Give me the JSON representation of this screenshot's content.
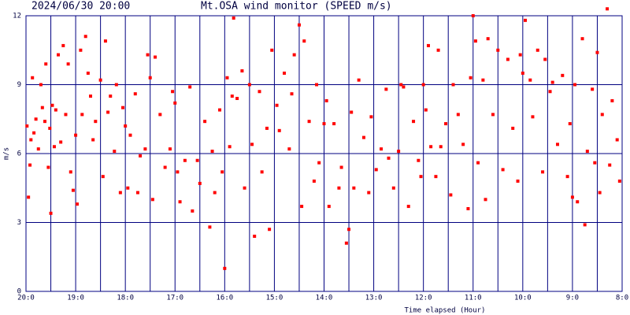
{
  "chart_data": {
    "type": "scatter",
    "title": "Mt.OSA wind monitor (SPEED m/s)",
    "subtitle": "2024/06/30 20:00",
    "xlabel": "Time elapsed (Hour)",
    "ylabel": "m/s",
    "color": "#ff0000",
    "grid": true,
    "xlim": [
      0,
      12
    ],
    "ylim": [
      0,
      12
    ],
    "yticks": [
      0,
      3,
      6,
      9,
      12
    ],
    "xticks": [
      {
        "value": 0,
        "label": "20:0"
      },
      {
        "value": 1,
        "label": "19:0"
      },
      {
        "value": 2,
        "label": "18:0"
      },
      {
        "value": 3,
        "label": "17:0"
      },
      {
        "value": 4,
        "label": "16:0"
      },
      {
        "value": 5,
        "label": "15:0"
      },
      {
        "value": 6,
        "label": "14:0"
      },
      {
        "value": 7,
        "label": "13:0"
      },
      {
        "value": 8,
        "label": "12:0"
      },
      {
        "value": 9,
        "label": "11:0"
      },
      {
        "value": 10,
        "label": "10:0"
      },
      {
        "value": 11,
        "label": "9:0"
      },
      {
        "value": 12,
        "label": "8:0"
      }
    ],
    "minor_xticks": [
      0.5,
      1.5,
      2.5,
      3.5,
      4.5,
      5.5,
      6.5,
      7.5,
      8.5,
      9.5,
      10.5,
      11.5
    ],
    "x": [
      0.02,
      0.05,
      0.08,
      0.1,
      0.13,
      0.16,
      0.2,
      0.25,
      0.3,
      0.33,
      0.38,
      0.4,
      0.45,
      0.48,
      0.5,
      0.53,
      0.57,
      0.6,
      0.65,
      0.7,
      0.75,
      0.8,
      0.85,
      0.9,
      0.95,
      1.0,
      1.03,
      1.1,
      1.13,
      1.2,
      1.25,
      1.3,
      1.35,
      1.4,
      1.5,
      1.55,
      1.6,
      1.65,
      1.7,
      1.78,
      1.82,
      1.9,
      1.95,
      2.0,
      2.05,
      2.1,
      2.2,
      2.25,
      2.3,
      2.4,
      2.45,
      2.5,
      2.55,
      2.6,
      2.7,
      2.8,
      2.9,
      2.95,
      3.0,
      3.05,
      3.1,
      3.2,
      3.3,
      3.35,
      3.45,
      3.5,
      3.6,
      3.7,
      3.75,
      3.8,
      3.9,
      3.95,
      4.0,
      4.05,
      4.1,
      4.15,
      4.18,
      4.25,
      4.35,
      4.4,
      4.5,
      4.55,
      4.6,
      4.7,
      4.75,
      4.85,
      4.9,
      4.95,
      5.05,
      5.1,
      5.2,
      5.3,
      5.35,
      5.4,
      5.5,
      5.55,
      5.6,
      5.7,
      5.8,
      5.85,
      5.9,
      6.0,
      6.05,
      6.1,
      6.2,
      6.3,
      6.35,
      6.45,
      6.5,
      6.55,
      6.6,
      6.7,
      6.8,
      6.9,
      6.95,
      7.05,
      7.15,
      7.25,
      7.3,
      7.4,
      7.5,
      7.55,
      7.6,
      7.7,
      7.8,
      7.9,
      7.95,
      8.0,
      8.05,
      8.1,
      8.15,
      8.25,
      8.3,
      8.35,
      8.45,
      8.55,
      8.6,
      8.7,
      8.8,
      8.9,
      8.95,
      9.0,
      9.05,
      9.1,
      9.2,
      9.25,
      9.3,
      9.4,
      9.5,
      9.6,
      9.7,
      9.8,
      9.9,
      9.95,
      10.0,
      10.05,
      10.15,
      10.2,
      10.3,
      10.4,
      10.45,
      10.55,
      10.6,
      10.7,
      10.8,
      10.9,
      10.95,
      11.0,
      11.05,
      11.1,
      11.2,
      11.25,
      11.3,
      11.4,
      11.45,
      11.5,
      11.55,
      11.6,
      11.7,
      11.75,
      11.8,
      11.9,
      11.95
    ],
    "values": [
      7.2,
      4.1,
      5.5,
      6.6,
      9.3,
      6.9,
      7.5,
      6.2,
      9.0,
      8.0,
      7.4,
      9.9,
      5.4,
      7.1,
      3.4,
      8.1,
      6.3,
      7.9,
      10.3,
      6.5,
      10.7,
      7.7,
      9.9,
      5.2,
      4.4,
      6.8,
      3.8,
      10.5,
      7.7,
      11.1,
      9.5,
      8.5,
      6.6,
      7.4,
      9.2,
      5.0,
      10.9,
      7.8,
      8.5,
      6.1,
      9.0,
      4.3,
      8.0,
      7.2,
      4.5,
      6.8,
      8.6,
      4.3,
      5.9,
      6.2,
      10.3,
      9.3,
      4.0,
      10.2,
      7.7,
      5.4,
      6.2,
      8.7,
      8.2,
      5.2,
      3.9,
      5.7,
      8.9,
      3.5,
      5.7,
      4.7,
      7.4,
      2.8,
      6.1,
      4.3,
      7.9,
      5.2,
      1.0,
      9.3,
      6.3,
      8.5,
      11.9,
      8.4,
      9.6,
      4.5,
      9.0,
      6.4,
      2.4,
      8.7,
      5.2,
      7.1,
      2.7,
      10.5,
      8.1,
      7.0,
      9.5,
      6.2,
      8.6,
      10.3,
      11.6,
      3.7,
      10.9,
      7.4,
      4.8,
      9.0,
      5.6,
      7.3,
      8.3,
      3.7,
      7.3,
      4.5,
      5.4,
      2.1,
      2.7,
      7.8,
      4.5,
      9.2,
      6.7,
      4.3,
      7.6,
      5.3,
      6.2,
      8.8,
      5.8,
      4.5,
      6.1,
      9.0,
      8.9,
      3.7,
      7.4,
      5.7,
      5.0,
      9.0,
      7.9,
      10.7,
      6.3,
      5.0,
      10.5,
      6.3,
      7.3,
      4.2,
      9.0,
      7.7,
      6.4,
      3.6,
      9.3,
      12.0,
      10.9,
      5.6,
      9.2,
      4.0,
      11.0,
      7.7,
      10.5,
      5.3,
      10.1,
      7.1,
      4.8,
      10.3,
      9.5,
      11.8,
      9.2,
      7.6,
      10.5,
      5.2,
      10.1,
      8.7,
      9.1,
      6.4,
      9.4,
      5.0,
      7.3,
      4.1,
      9.0,
      3.9,
      11.0,
      2.9,
      6.1,
      8.8,
      5.6,
      10.4,
      4.3,
      7.7,
      12.3,
      5.5,
      8.3,
      6.6,
      4.8
    ]
  }
}
